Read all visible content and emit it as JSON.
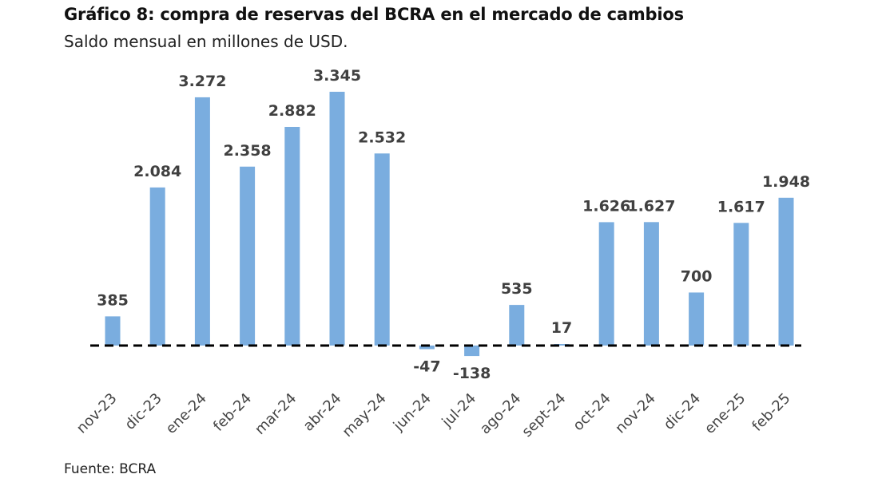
{
  "header": {
    "title": "Gráfico 8: compra de reservas del BCRA en el mercado de cambios",
    "subtitle": "Saldo mensual en millones de USD."
  },
  "footer": {
    "source": "Fuente: BCRA"
  },
  "colors": {
    "bar": "#7aaddf",
    "baseline": "#000000",
    "label": "#404040"
  },
  "chart_data": {
    "type": "bar",
    "title": "Gráfico 8: compra de reservas del BCRA en el mercado de cambios",
    "subtitle": "Saldo mensual en millones de USD.",
    "categories": [
      "nov-23",
      "dic-23",
      "ene-24",
      "feb-24",
      "mar-24",
      "abr-24",
      "may-24",
      "jun-24",
      "jul-24",
      "ago-24",
      "sept-24",
      "oct-24",
      "nov-24",
      "dic-24",
      "ene-25",
      "feb-25"
    ],
    "values": [
      385,
      2084,
      3272,
      2358,
      2882,
      3345,
      2532,
      -47,
      -138,
      535,
      17,
      1626,
      1627,
      700,
      1617,
      1948
    ],
    "value_labels": [
      "385",
      "2.084",
      "3.272",
      "2.358",
      "2.882",
      "3.345",
      "2.532",
      "-47",
      "-138",
      "535",
      "17",
      "1.626",
      "1.627",
      "700",
      "1.617",
      "1.948"
    ],
    "xlabel": "",
    "ylabel": "",
    "ylim": [
      -150,
      3345
    ],
    "grid": false,
    "legend": "none",
    "zero_line": "dashed"
  }
}
